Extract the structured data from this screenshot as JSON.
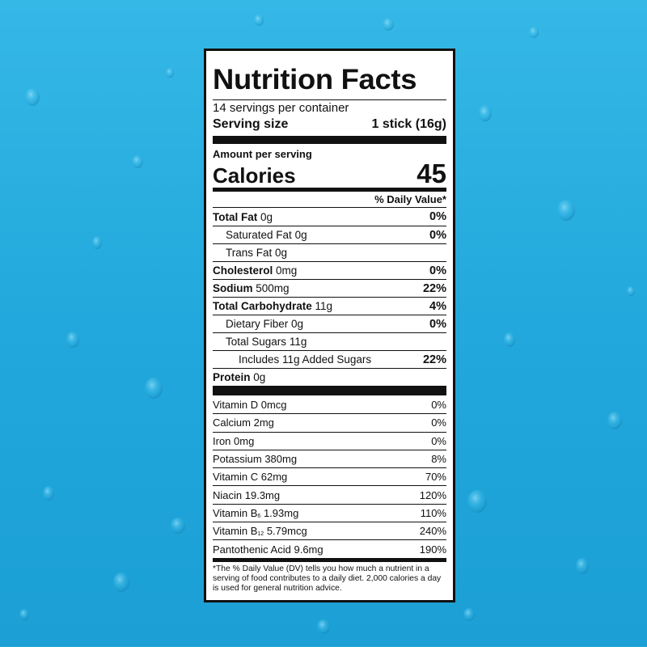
{
  "label": {
    "title": "Nutrition Facts",
    "servings": "14 servings per container",
    "serving_size_label": "Serving size",
    "serving_size": "1 stick (16g)",
    "amount_per_serving": "Amount per serving",
    "calories_label": "Calories",
    "calories": 45,
    "dv_header": "% Daily Value*",
    "nutrients": [
      {
        "name": "Total Fat",
        "amount": "0g",
        "dv": "0%"
      },
      {
        "name": "Saturated Fat",
        "amount": "0g",
        "dv": "0%"
      },
      {
        "name": "Trans Fat",
        "amount": "0g"
      },
      {
        "name": "Cholesterol",
        "amount": "0mg",
        "dv": "0%"
      },
      {
        "name": "Sodium",
        "amount": "500mg",
        "dv": "22%"
      },
      {
        "name": "Total Carbohydrate",
        "amount": "11g",
        "dv": "4%"
      },
      {
        "name": "Dietary Fiber",
        "amount": "0g",
        "dv": "0%"
      },
      {
        "name": "Total Sugars",
        "amount": "11g"
      },
      {
        "name": "Includes 11g Added Sugars",
        "dv": "22%"
      },
      {
        "name": "Protein",
        "amount": "0g"
      }
    ],
    "vitamins": [
      {
        "name": "Vitamin D",
        "amount": "0mcg",
        "dv": "0%"
      },
      {
        "name": "Calcium",
        "amount": "2mg",
        "dv": "0%"
      },
      {
        "name": "Iron",
        "amount": "0mg",
        "dv": "0%"
      },
      {
        "name": "Potassium",
        "amount": "380mg",
        "dv": "8%"
      },
      {
        "name": "Vitamin C",
        "amount": "62mg",
        "dv": "70%"
      },
      {
        "name": "Niacin",
        "amount": "19.3mg",
        "dv": "120%"
      },
      {
        "name": "Vitamin B",
        "subscript": "6",
        "amount": "1.93mg",
        "dv": "110%"
      },
      {
        "name": "Vitamin B",
        "subscript": "12",
        "amount": "5.79mcg",
        "dv": "240%"
      },
      {
        "name": "Pantothenic Acid",
        "amount": "9.6mg",
        "dv": "190%"
      }
    ],
    "footnote": "*The % Daily Value (DV) tells you how much a nutrient in a serving of food contributes to a daily diet. 2,000 calories a day is used for general nutrition advice."
  }
}
